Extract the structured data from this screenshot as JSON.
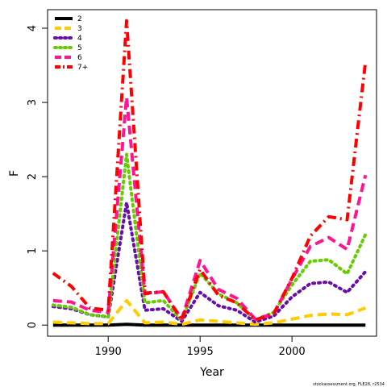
{
  "chart_data": {
    "type": "line",
    "title": "",
    "xlabel": "Year",
    "ylabel": "F",
    "xlim": [
      1986.7,
      2004.6
    ],
    "ylim": [
      -0.15,
      4.25
    ],
    "xticks": [
      "1990",
      "1995",
      "2000"
    ],
    "yticks": [
      "0",
      "1",
      "2",
      "3",
      "4"
    ],
    "x": [
      1987,
      1988,
      1989,
      1990,
      1991,
      1992,
      1993,
      1994,
      1995,
      1996,
      1997,
      1998,
      1999,
      2000,
      2001,
      2002,
      2003,
      2004
    ],
    "legend_position": "top-left",
    "series": [
      {
        "name": "2",
        "color": "#000000",
        "dash": "solid",
        "values": [
          0.0,
          0.0,
          0.0,
          0.0,
          0.01,
          0.0,
          0.0,
          0.0,
          0.0,
          0.0,
          0.0,
          0.0,
          0.0,
          0.0,
          0.0,
          0.0,
          0.0,
          0.0
        ]
      },
      {
        "name": "3",
        "color": "#ffcc00",
        "dash": "dashed",
        "values": [
          0.04,
          0.03,
          0.02,
          0.02,
          0.33,
          0.03,
          0.04,
          0.01,
          0.07,
          0.05,
          0.03,
          0.01,
          0.03,
          0.08,
          0.13,
          0.15,
          0.14,
          0.23
        ]
      },
      {
        "name": "4",
        "color": "#6a0dad",
        "dash": "dotted",
        "values": [
          0.25,
          0.22,
          0.14,
          0.11,
          1.65,
          0.2,
          0.22,
          0.05,
          0.44,
          0.26,
          0.2,
          0.04,
          0.12,
          0.38,
          0.56,
          0.58,
          0.44,
          0.72
        ]
      },
      {
        "name": "5",
        "color": "#66cc00",
        "dash": "dotted",
        "values": [
          0.27,
          0.24,
          0.14,
          0.11,
          2.3,
          0.3,
          0.33,
          0.06,
          0.7,
          0.42,
          0.3,
          0.07,
          0.17,
          0.54,
          0.86,
          0.88,
          0.69,
          1.22
        ]
      },
      {
        "name": "6",
        "color": "#ff1493",
        "dash": "dashed",
        "values": [
          0.33,
          0.31,
          0.2,
          0.17,
          3.07,
          0.42,
          0.45,
          0.08,
          0.87,
          0.48,
          0.36,
          0.08,
          0.15,
          0.62,
          1.06,
          1.18,
          1.02,
          2.02
        ]
      },
      {
        "name": "7+",
        "color": "#ff0000",
        "dash": "dashdot",
        "values": [
          0.7,
          0.52,
          0.23,
          0.2,
          4.1,
          0.43,
          0.45,
          0.07,
          0.75,
          0.4,
          0.3,
          0.07,
          0.15,
          0.63,
          1.2,
          1.46,
          1.42,
          3.55
        ]
      }
    ],
    "footnote": "stockassessment.org, FLE28, r2534"
  }
}
